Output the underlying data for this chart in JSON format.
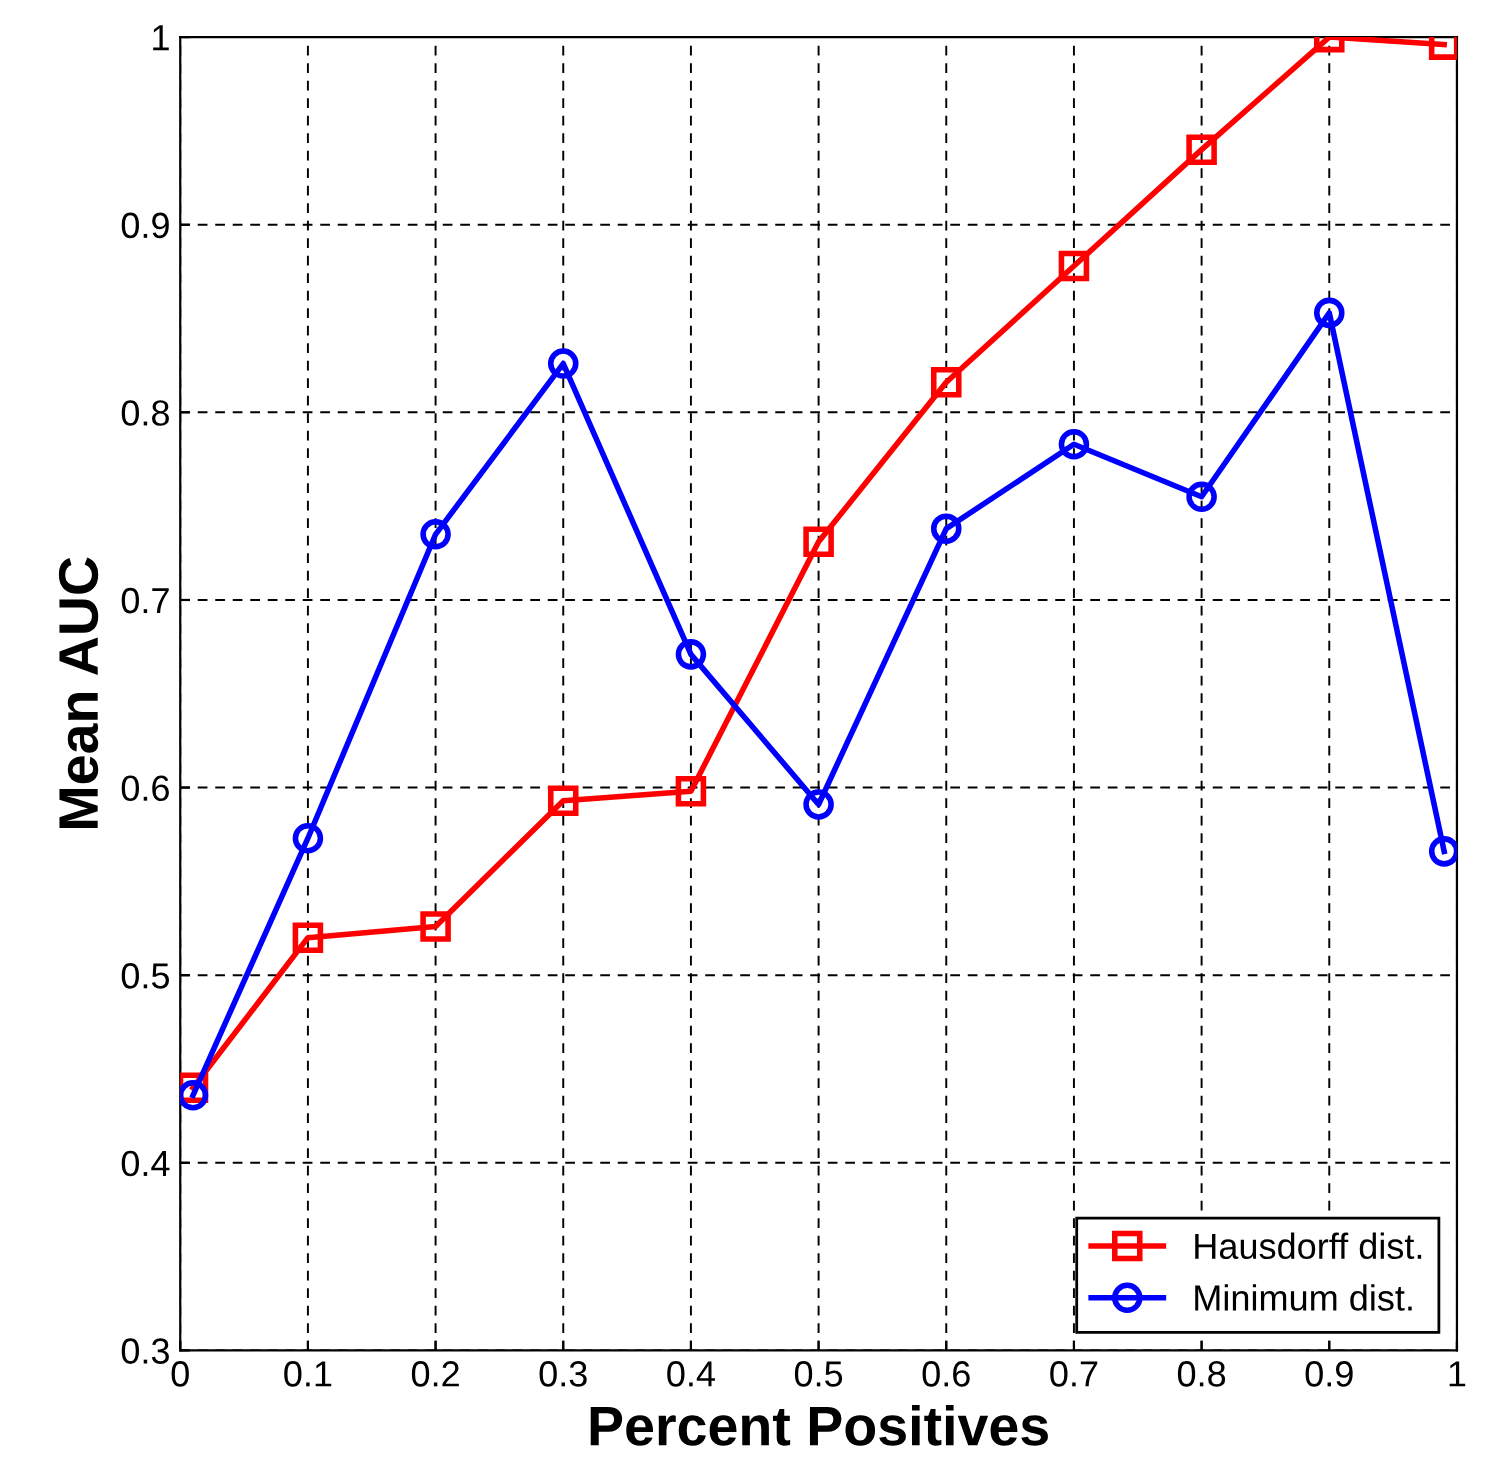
{
  "chart_data": {
    "type": "line",
    "xlabel": "Percent Positives",
    "ylabel": "Mean AUC",
    "x": [
      0.01,
      0.1,
      0.2,
      0.3,
      0.4,
      0.5,
      0.6,
      0.7,
      0.8,
      0.9,
      0.99
    ],
    "series": [
      {
        "name": "Hausdorff dist.",
        "color": "#ff0000",
        "marker": "square",
        "values": [
          0.44,
          0.52,
          0.526,
          0.593,
          0.598,
          0.731,
          0.816,
          0.878,
          0.94,
          1.0,
          0.996
        ]
      },
      {
        "name": "Minimum dist.",
        "color": "#0000ff",
        "marker": "circle",
        "values": [
          0.436,
          0.573,
          0.735,
          0.826,
          0.671,
          0.591,
          0.738,
          0.783,
          0.755,
          0.853,
          0.566
        ]
      }
    ],
    "xlim": [
      0,
      1
    ],
    "xticks": [
      0,
      0.1,
      0.2,
      0.3,
      0.4,
      0.5,
      0.6,
      0.7,
      0.8,
      0.9,
      1
    ],
    "ylim": [
      0.3,
      1
    ],
    "yticks": [
      0.3,
      0.4,
      0.5,
      0.6,
      0.7,
      0.8,
      0.9,
      1
    ],
    "grid": true,
    "legend": "bottom right",
    "line_style": "solid"
  }
}
